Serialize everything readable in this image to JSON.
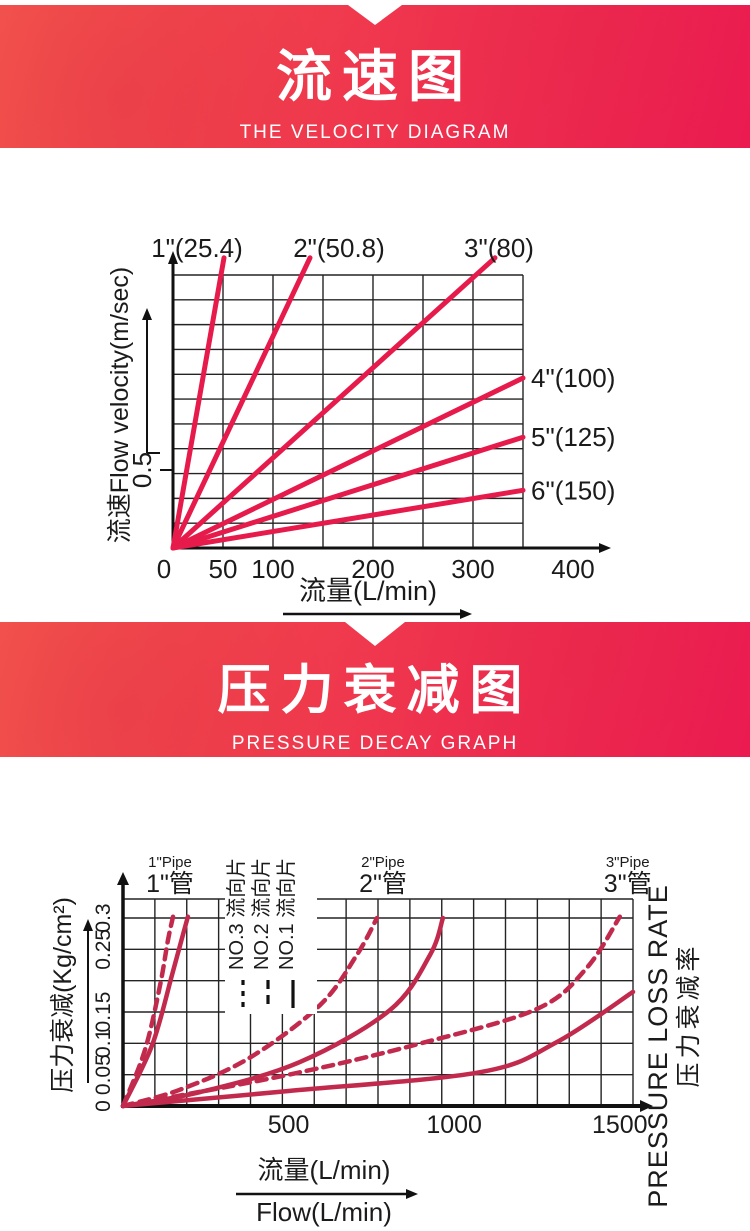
{
  "banners": [
    {
      "title": "流速图",
      "subtitle": "THE VELOCITY DIAGRAM"
    },
    {
      "title": "压力衰减图",
      "subtitle": "PRESSURE DECAY GRAPH"
    }
  ],
  "colors": {
    "banner_start": "#f5574e",
    "banner_end": "#ec1a52",
    "velocity_line_red": "#e61a4b",
    "pressure_curve_red": "#c22a4d",
    "grid": "#242424",
    "axis": "#111111",
    "text": "#1b1b1b"
  },
  "chart_data": [
    {
      "type": "line",
      "name": "velocity-diagram",
      "title": "流速图 THE VELOCITY DIAGRAM",
      "xlabel": "流量(L/min)",
      "ylabel": "流速Flow velocity(m/sec)",
      "xlim": [
        0,
        350
      ],
      "ylim": [
        0,
        1.75
      ],
      "grid": {
        "cols": 7,
        "rows": 11,
        "on": true
      },
      "x_ticks": [
        {
          "v": 0,
          "label": "0"
        },
        {
          "v": 50,
          "label": "50"
        },
        {
          "v": 100,
          "label": "100"
        },
        {
          "v": 200,
          "label": "200"
        },
        {
          "v": 300,
          "label": "300"
        },
        {
          "v": 400,
          "label": "400"
        }
      ],
      "y_ticks": [
        {
          "v": 0.5,
          "label": "0.5"
        }
      ],
      "series": [
        {
          "label": "1\"(25.4)",
          "end": [
            51,
            1.86
          ],
          "label_side": "top",
          "label_x": 24
        },
        {
          "label": "2\"(50.8)",
          "end": [
            137,
            1.86
          ],
          "label_side": "top",
          "label_x": 166
        },
        {
          "label": "3\"(80)",
          "end": [
            322,
            1.86
          ],
          "label_side": "top",
          "label_x": 326
        },
        {
          "label": "4\"(100)",
          "end": [
            350,
            1.09
          ],
          "label_side": "right"
        },
        {
          "label": "5\"(125)",
          "end": [
            350,
            0.71
          ],
          "label_side": "right"
        },
        {
          "label": "6\"(150)",
          "end": [
            350,
            0.37
          ],
          "label_side": "right"
        }
      ]
    },
    {
      "type": "line",
      "name": "pressure-decay",
      "title": "压力衰减图 PRESSURE DECAY GRAPH",
      "xlabel_cn": "流量(L/min)",
      "xlabel_en": "Flow(L/min)",
      "ylabel": "压力衰减(Kg/cm²)",
      "right_label_en": "PRESSURE LOSS RATE",
      "right_label_cn": "压力衰减率",
      "xlim": [
        0,
        1540
      ],
      "ylim": [
        0,
        0.3
      ],
      "grid": {
        "cols": 16,
        "y_step": 0.05,
        "on": true
      },
      "x_ticks": [
        {
          "v": 500,
          "label": "500"
        },
        {
          "v": 1000,
          "label": "1000"
        },
        {
          "v": 1500,
          "label": "1500"
        }
      ],
      "y_ticks": [
        {
          "v": 0,
          "label": "0"
        },
        {
          "v": 0.05,
          "label": "0.05"
        },
        {
          "v": 0.1,
          "label": "0.1"
        },
        {
          "v": 0.15,
          "label": "0.15"
        },
        {
          "v": 0.25,
          "label": "0.25"
        },
        {
          "v": 0.3,
          "label": "0.3"
        }
      ],
      "pipe_headers": [
        {
          "en": "1\"Pipe",
          "cn": "1\"管",
          "x": 142
        },
        {
          "en": "2\"Pipe",
          "cn": "2\"管",
          "x": 785
        },
        {
          "en": "3\"Pipe",
          "cn": "3\"管",
          "x": 1524
        }
      ],
      "legend": [
        {
          "label": "NO.3 流向片",
          "style": "dash-short"
        },
        {
          "label": "NO.2 流向片",
          "style": "dash"
        },
        {
          "label": "NO.1 流向片",
          "style": "solid"
        }
      ],
      "series": [
        {
          "pipe": "1\"",
          "style": "dashed",
          "points": [
            [
              0,
              0
            ],
            [
              66,
              0.089
            ],
            [
              112,
              0.193
            ],
            [
              136,
              0.265
            ],
            [
              151,
              0.302
            ]
          ]
        },
        {
          "pipe": "1\"",
          "style": "solid",
          "points": [
            [
              0,
              0
            ],
            [
              88,
              0.097
            ],
            [
              148,
              0.209
            ],
            [
              181,
              0.273
            ],
            [
              196,
              0.302
            ]
          ]
        },
        {
          "pipe": "2\"",
          "style": "dashed",
          "points": [
            [
              0,
              0
            ],
            [
              172,
              0.026
            ],
            [
              383,
              0.077
            ],
            [
              595,
              0.161
            ],
            [
              706,
              0.241
            ],
            [
              767,
              0.3
            ]
          ]
        },
        {
          "pipe": "2\"",
          "style": "solid",
          "points": [
            [
              0,
              0
            ],
            [
              232,
              0.022
            ],
            [
              534,
              0.07
            ],
            [
              806,
              0.153
            ],
            [
              927,
              0.241
            ],
            [
              966,
              0.3
            ]
          ]
        },
        {
          "pipe": "3\"",
          "style": "dashed",
          "points": [
            [
              0,
              0
            ],
            [
              500,
              0.05
            ],
            [
              900,
              0.1
            ],
            [
              1250,
              0.155
            ],
            [
              1400,
              0.22
            ],
            [
              1500,
              0.302
            ]
          ]
        },
        {
          "pipe": "3\"",
          "style": "solid",
          "points": [
            [
              0,
              0
            ],
            [
              500,
              0.024
            ],
            [
              1078,
              0.054
            ],
            [
              1310,
              0.102
            ],
            [
              1540,
              0.182
            ]
          ]
        }
      ]
    }
  ]
}
